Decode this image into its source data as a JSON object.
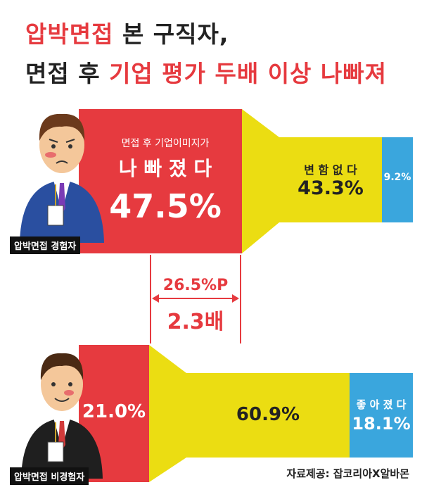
{
  "title": {
    "line1_red": "압박면접",
    "line1_black": " 본 구직자,",
    "line2_black": "면접 후 ",
    "line2_red": "기업 평가 두배 이상 나빠져"
  },
  "groups": {
    "experienced": {
      "tag": "압박면접 경험자",
      "bad_sub": "면접 후 기업이미지가",
      "bad_main": "나 빠 졌 다",
      "bad_value": "47.5%",
      "same_label": "변 함 없 다",
      "same_value": "43.3%",
      "good_value": "9.2%"
    },
    "non_experienced": {
      "tag": "압박면접 비경험자",
      "bad_value": "21.0%",
      "same_value": "60.9%",
      "good_label": "좋 아 졌 다",
      "good_value": "18.1%"
    }
  },
  "comparison": {
    "diff": "26.5%P",
    "ratio": "2.3배"
  },
  "source": "자료제공: 잡코리아X알바몬",
  "colors": {
    "red": "#e63a3f",
    "yellow": "#ebdd12",
    "blue": "#3aa6dd",
    "text": "#222222"
  },
  "chart_data": {
    "type": "bar",
    "categories": [
      "압박면접 경험자",
      "압박면접 비경험자"
    ],
    "series": [
      {
        "name": "나빠졌다",
        "values": [
          47.5,
          21.0
        ]
      },
      {
        "name": "변함없다",
        "values": [
          43.3,
          60.9
        ]
      },
      {
        "name": "좋아졌다",
        "values": [
          9.2,
          18.1
        ]
      }
    ],
    "annotations": [
      "26.5%P",
      "2.3배"
    ]
  }
}
